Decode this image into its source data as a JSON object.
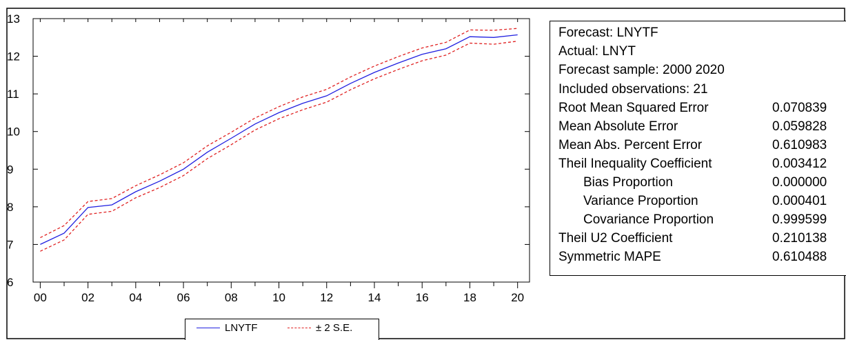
{
  "chart_data": {
    "type": "line",
    "x": [
      2000,
      2001,
      2002,
      2003,
      2004,
      2005,
      2006,
      2007,
      2008,
      2009,
      2010,
      2011,
      2012,
      2013,
      2014,
      2015,
      2016,
      2017,
      2018,
      2019,
      2020
    ],
    "x_tick_labels": [
      "00",
      "02",
      "04",
      "06",
      "08",
      "10",
      "12",
      "14",
      "16",
      "18",
      "20"
    ],
    "y_tick_labels": [
      "6",
      "7",
      "8",
      "9",
      "10",
      "11",
      "12",
      "13"
    ],
    "ylim": [
      6,
      13
    ],
    "xlim": [
      1999.7,
      2020.5
    ],
    "grid": false,
    "legend_position": "bottom",
    "series": [
      {
        "name": "LNYTF",
        "style": "solid",
        "color": "#2020e0",
        "values": [
          7.0,
          7.3,
          7.98,
          8.05,
          8.4,
          8.68,
          9.0,
          9.45,
          9.82,
          10.2,
          10.5,
          10.75,
          10.95,
          11.28,
          11.57,
          11.82,
          12.05,
          12.2,
          12.52,
          12.5,
          12.57
        ]
      },
      {
        "name": "± 2 S.E.",
        "style": "dashed",
        "color": "#e02020",
        "values": [
          7.18,
          7.5,
          8.14,
          8.22,
          8.56,
          8.85,
          9.17,
          9.62,
          9.98,
          10.36,
          10.66,
          10.92,
          11.12,
          11.45,
          11.74,
          11.99,
          12.22,
          12.37,
          12.7,
          12.69,
          12.74
        ]
      },
      {
        "name": "",
        "style": "dashed",
        "color": "#e02020",
        "values": [
          6.82,
          7.12,
          7.8,
          7.88,
          8.24,
          8.51,
          8.83,
          9.28,
          9.65,
          10.04,
          10.34,
          10.58,
          10.78,
          11.11,
          11.4,
          11.65,
          11.88,
          12.03,
          12.35,
          12.32,
          12.4
        ]
      }
    ]
  },
  "stats": {
    "forecast": "Forecast: LNYTF",
    "actual": "Actual: LNYT",
    "sample": "Forecast sample: 2000 2020",
    "included": "Included observations: 21",
    "rows": [
      {
        "label": "Root Mean Squared Error",
        "value": "0.070839"
      },
      {
        "label": "Mean Absolute Error",
        "value": "0.059828"
      },
      {
        "label": "Mean Abs. Percent Error",
        "value": "0.610983"
      },
      {
        "label": "Theil Inequality Coefficient",
        "value": "0.003412"
      },
      {
        "label": "Bias Proportion",
        "value": "0.000000"
      },
      {
        "label": "Variance Proportion",
        "value": "0.000401"
      },
      {
        "label": "Covariance Proportion",
        "value": "0.999599"
      },
      {
        "label": "Theil U2 Coefficient",
        "value": "0.210138"
      },
      {
        "label": "Symmetric MAPE",
        "value": "0.610488"
      }
    ]
  },
  "legend": {
    "series1_label": "LNYTF",
    "series2_label": "± 2 S.E."
  }
}
